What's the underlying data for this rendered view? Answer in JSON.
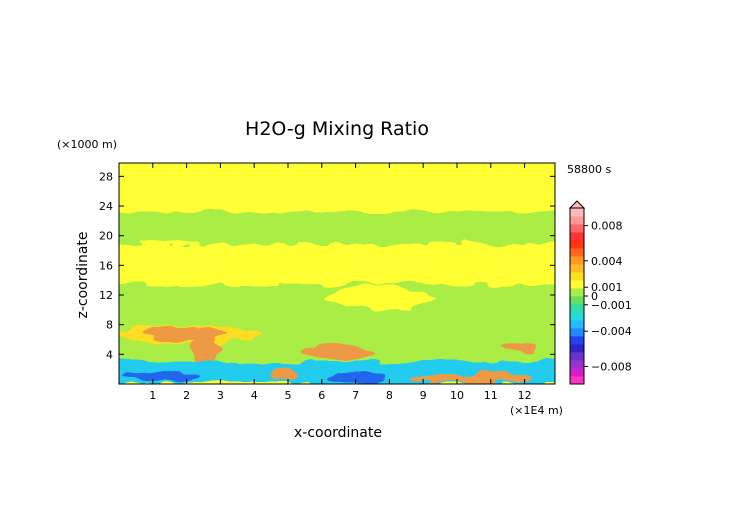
{
  "chart_data": {
    "type": "heatmap",
    "title": "H2O-g Mixing Ratio",
    "time_label": "58800 s",
    "xlabel": "x-coordinate",
    "ylabel": "z-coordinate",
    "x_unit": "(×1E4 m)",
    "y_unit": "(×1000 m)",
    "xlim": [
      0,
      12.9
    ],
    "ylim": [
      0,
      29.8
    ],
    "x_ticks": [
      1,
      2,
      3,
      4,
      5,
      6,
      7,
      8,
      9,
      10,
      11,
      12
    ],
    "y_ticks": [
      4,
      8,
      12,
      16,
      20,
      24,
      28
    ],
    "colorbar": {
      "range": [
        -0.01,
        0.01
      ],
      "labels": [
        {
          "value": 0.008,
          "text": "0.008"
        },
        {
          "value": 0.004,
          "text": "0.004"
        },
        {
          "value": 0.001,
          "text": "0.001"
        },
        {
          "value": 0,
          "text": "0"
        },
        {
          "value": -0.001,
          "text": "−0.001"
        },
        {
          "value": -0.004,
          "text": "−0.004"
        },
        {
          "value": -0.008,
          "text": "−0.008"
        }
      ],
      "colors": [
        "#ff33cc",
        "#cc22cc",
        "#9933cc",
        "#6633cc",
        "#3322cc",
        "#2244ee",
        "#2288ff",
        "#22bbff",
        "#22dddd",
        "#33ddaa",
        "#66dd66",
        "#aaee44",
        "#ffff33",
        "#ffdd22",
        "#ffbb22",
        "#ff9922",
        "#ff6622",
        "#ff3311",
        "#ff3333",
        "#ff6666",
        "#ff9999",
        "#ffbbbb"
      ]
    },
    "regions": [
      {
        "level": "0",
        "color": "#ffff33",
        "z_range": [
          0,
          29.8
        ],
        "note": "background"
      },
      {
        "level": "-0.001",
        "color": "#aaee44",
        "x_range": [
          0,
          12.9
        ],
        "z_range": [
          18.6,
          23.2
        ]
      },
      {
        "level": "-0.001",
        "color": "#aaee44",
        "x_range": [
          0,
          12.9
        ],
        "z_range": [
          3.0,
          13.5
        ]
      },
      {
        "level": "0.001",
        "color": "#ffdd22",
        "x_range": [
          0,
          6.2
        ],
        "z_range": [
          6.2,
          8.2
        ]
      },
      {
        "level": "0.004",
        "color": "#ee9944",
        "x_range": [
          1.0,
          3.2
        ],
        "z_range": [
          6.5,
          8.3
        ]
      },
      {
        "level": "0.004",
        "color": "#ee9944",
        "x_range": [
          5.8,
          8.0
        ],
        "z_range": [
          3.2,
          5.3
        ]
      },
      {
        "level": "-0.004",
        "color": "#22ccee",
        "x_range": [
          0,
          12.9
        ],
        "z_range": [
          0.3,
          3.0
        ]
      },
      {
        "level": "-0.008",
        "color": "#2266ee",
        "x_range": [
          0.5,
          7.5
        ],
        "z_range": [
          0,
          1.2
        ]
      }
    ]
  }
}
